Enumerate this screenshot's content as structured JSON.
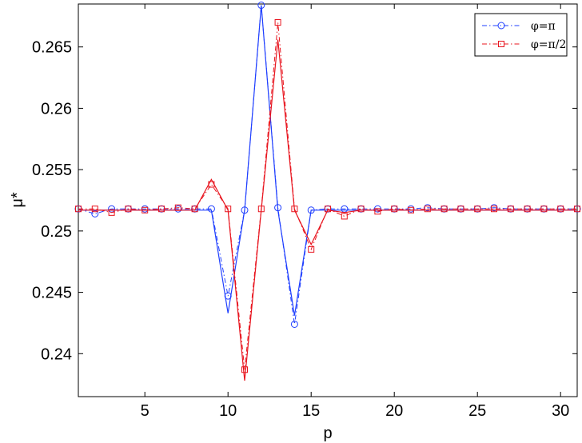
{
  "chart_data": {
    "type": "line",
    "title": "",
    "xlabel": "p",
    "ylabel": "μ*",
    "xlim": [
      1,
      31
    ],
    "ylim": [
      0.2365,
      0.2685
    ],
    "xticks": [
      5,
      10,
      15,
      20,
      25,
      30
    ],
    "xtick_labels": [
      "5",
      "10",
      "15",
      "20",
      "25",
      "30"
    ],
    "yticks": [
      0.24,
      0.245,
      0.25,
      0.255,
      0.26,
      0.265
    ],
    "ytick_labels": [
      "0.24",
      "0.245",
      "0.25",
      "0.255",
      "0.26",
      "0.265"
    ],
    "grid": false,
    "legend_position": "top-right",
    "series": [
      {
        "name": "φ=π",
        "color": "#1f3fff",
        "marker": "circle",
        "x": [
          1,
          2,
          3,
          4,
          5,
          6,
          7,
          8,
          9,
          10,
          11,
          12,
          13,
          14,
          15,
          16,
          17,
          18,
          19,
          20,
          21,
          22,
          23,
          24,
          25,
          26,
          27,
          28,
          29,
          30,
          31
        ],
        "marker_values": [
          0.2518,
          0.2514,
          0.2518,
          0.2518,
          0.2518,
          0.2518,
          0.2518,
          0.2518,
          0.2518,
          0.2447,
          0.2517,
          0.2684,
          0.2519,
          0.2424,
          0.2517,
          0.2518,
          0.2518,
          0.2518,
          0.2518,
          0.2518,
          0.2518,
          0.2519,
          0.2518,
          0.2518,
          0.2518,
          0.2519,
          0.2518,
          0.2518,
          0.2518,
          0.2518,
          0.2518
        ],
        "solid_values": [
          0.2517,
          0.2517,
          0.2517,
          0.2517,
          0.2517,
          0.2517,
          0.2517,
          0.2517,
          0.2517,
          0.2433,
          0.2517,
          0.2684,
          0.2517,
          0.2431,
          0.2517,
          0.2517,
          0.2517,
          0.2517,
          0.2517,
          0.2517,
          0.2517,
          0.2517,
          0.2517,
          0.2517,
          0.2517,
          0.2517,
          0.2517,
          0.2517,
          0.2517,
          0.2517,
          0.2517
        ]
      },
      {
        "name": "φ=π/2",
        "color": "#e8141e",
        "marker": "square",
        "x": [
          1,
          2,
          3,
          4,
          5,
          6,
          7,
          8,
          9,
          10,
          11,
          12,
          13,
          14,
          15,
          16,
          17,
          18,
          19,
          20,
          21,
          22,
          23,
          24,
          25,
          26,
          27,
          28,
          29,
          30,
          31
        ],
        "marker_values": [
          0.2518,
          0.2518,
          0.2515,
          0.2518,
          0.2517,
          0.2518,
          0.2519,
          0.2518,
          0.2538,
          0.2518,
          0.2387,
          0.2518,
          0.267,
          0.2518,
          0.2485,
          0.2518,
          0.2512,
          0.2518,
          0.2516,
          0.2518,
          0.2517,
          0.2518,
          0.2518,
          0.2518,
          0.2518,
          0.2518,
          0.2518,
          0.2518,
          0.2518,
          0.2518,
          0.2518
        ],
        "solid_values": [
          0.2517,
          0.2517,
          0.2517,
          0.2517,
          0.2517,
          0.2517,
          0.2517,
          0.2517,
          0.2542,
          0.2517,
          0.2378,
          0.2517,
          0.2656,
          0.2517,
          0.2489,
          0.2517,
          0.2515,
          0.2517,
          0.2517,
          0.2517,
          0.2517,
          0.2517,
          0.2517,
          0.2517,
          0.2517,
          0.2517,
          0.2517,
          0.2517,
          0.2517,
          0.2517,
          0.2517
        ]
      }
    ]
  }
}
